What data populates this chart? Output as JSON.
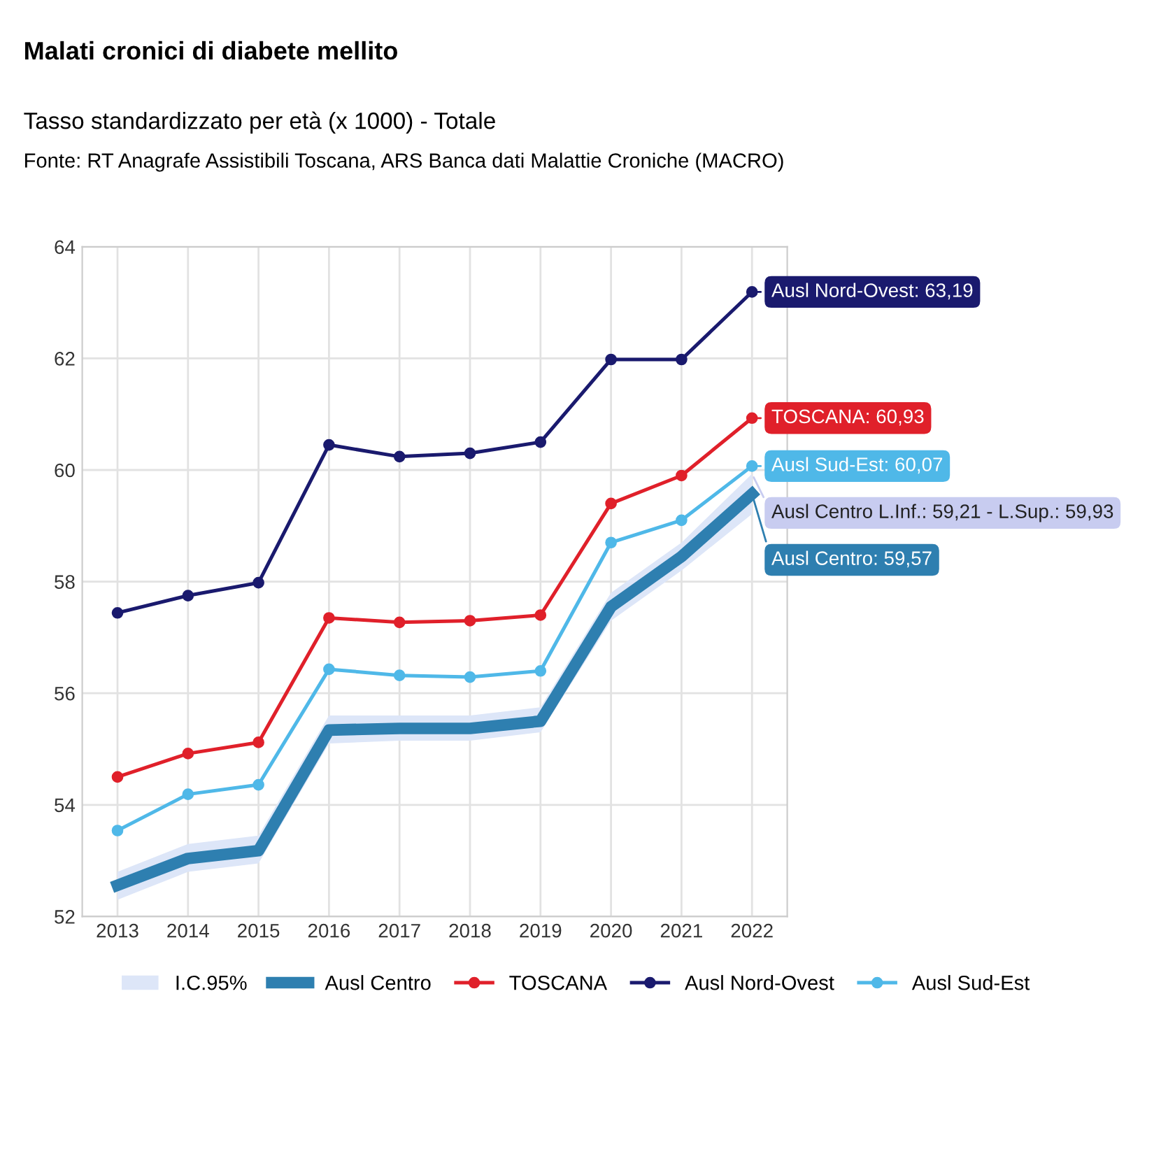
{
  "chart_data": {
    "type": "line",
    "title": "Malati cronici di diabete mellito",
    "subtitle": "Tasso standardizzato per età (x 1000) - Totale",
    "categories": [
      "2013",
      "2014",
      "2015",
      "2016",
      "2017",
      "2018",
      "2019",
      "2020",
      "2021",
      "2022"
    ],
    "series": [
      {
        "name": "Ausl Centro",
        "color": "#2e7fb0",
        "marker": "none",
        "values": [
          52.56,
          53.04,
          53.18,
          55.34,
          55.37,
          55.37,
          55.5,
          57.55,
          58.45,
          59.57
        ],
        "lower": [
          52.3,
          52.8,
          52.95,
          55.1,
          55.15,
          55.15,
          55.3,
          57.3,
          58.2,
          59.21
        ],
        "upper": [
          52.8,
          53.3,
          53.45,
          55.6,
          55.6,
          55.6,
          55.75,
          57.8,
          58.7,
          59.93
        ]
      },
      {
        "name": "TOSCANA",
        "color": "#e0202a",
        "values": [
          54.5,
          54.92,
          55.12,
          57.35,
          57.27,
          57.3,
          57.4,
          59.4,
          59.9,
          60.93
        ]
      },
      {
        "name": "Ausl Nord-Ovest",
        "color": "#1a1a6e",
        "values": [
          57.44,
          57.75,
          57.98,
          60.45,
          60.24,
          60.3,
          60.5,
          61.98,
          61.98,
          63.19
        ]
      },
      {
        "name": "Ausl Sud-Est",
        "color": "#4fb8e8",
        "values": [
          53.54,
          54.19,
          54.36,
          56.43,
          56.32,
          56.29,
          56.4,
          58.7,
          59.1,
          60.07
        ]
      }
    ],
    "legend_title": "I.C.95%",
    "annotations": [
      {
        "text": "Ausl Centro: 59,57",
        "x": "2022",
        "y": 59.57
      },
      {
        "text": "TOSCANA: 60,93",
        "x": "2022",
        "y": 60.93
      },
      {
        "text": "Ausl Centro L.Inf.: 59,21 - L.Sup.: 59,93",
        "x": "2022",
        "y": 59.93
      },
      {
        "text": "Ausl Nord-Ovest: 63,19",
        "x": "2022",
        "y": 63.19
      },
      {
        "text": "Ausl Sud-Est: 60,07",
        "x": "2022",
        "y": 60.07
      },
      "Fonte: RT Anagrafe Assistibili Toscana, ARS Banca dati Malattie Croniche (MACRO)"
    ],
    "ylim": [
      52,
      64
    ],
    "yticks": [
      52,
      54,
      56,
      58,
      60,
      62,
      64
    ],
    "grid": true,
    "legend": "bottom",
    "marker": "circle"
  }
}
